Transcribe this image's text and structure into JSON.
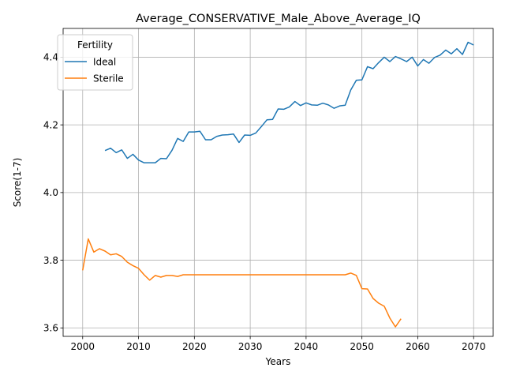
{
  "chart_data": {
    "type": "line",
    "title": "Average_CONSERVATIVE_Male_Above_Average_IQ",
    "xlabel": "Years",
    "ylabel": "Score(1-7)",
    "xlim": [
      1996.5,
      2073.5
    ],
    "ylim": [
      3.575,
      4.485
    ],
    "xticks": [
      2000,
      2010,
      2020,
      2030,
      2040,
      2050,
      2060,
      2070
    ],
    "yticks": [
      3.6,
      3.8,
      4.0,
      4.2,
      4.4
    ],
    "grid": true,
    "legend": {
      "title": "Fertility",
      "placement": "top-left"
    },
    "series": [
      {
        "name": "Ideal",
        "color": "#1f77b4",
        "x": [
          2004,
          2005,
          2006,
          2007,
          2008,
          2009,
          2010,
          2011,
          2012,
          2013,
          2014,
          2015,
          2016,
          2017,
          2018,
          2019,
          2020,
          2021,
          2022,
          2023,
          2024,
          2025,
          2026,
          2027,
          2028,
          2029,
          2030,
          2031,
          2032,
          2033,
          2034,
          2035,
          2036,
          2037,
          2038,
          2039,
          2040,
          2041,
          2042,
          2043,
          2044,
          2045,
          2046,
          2047,
          2048,
          2049,
          2050,
          2051,
          2052,
          2053,
          2054,
          2055,
          2056,
          2057,
          2058,
          2059,
          2060,
          2061,
          2062,
          2063,
          2064,
          2065,
          2066,
          2067,
          2068,
          2069,
          2070
        ],
        "y": [
          4.124,
          4.131,
          4.118,
          4.126,
          4.101,
          4.113,
          4.096,
          4.088,
          4.088,
          4.088,
          4.101,
          4.1,
          4.125,
          4.16,
          4.151,
          4.179,
          4.179,
          4.181,
          4.156,
          4.156,
          4.166,
          4.17,
          4.171,
          4.173,
          4.148,
          4.17,
          4.169,
          4.176,
          4.195,
          4.215,
          4.216,
          4.247,
          4.246,
          4.253,
          4.269,
          4.257,
          4.265,
          4.259,
          4.258,
          4.264,
          4.259,
          4.249,
          4.256,
          4.258,
          4.303,
          4.332,
          4.333,
          4.372,
          4.366,
          4.384,
          4.4,
          4.387,
          4.402,
          4.395,
          4.387,
          4.4,
          4.374,
          4.393,
          4.382,
          4.399,
          4.406,
          4.421,
          4.41,
          4.425,
          4.408,
          4.444,
          4.436
        ]
      },
      {
        "name": "Sterile",
        "color": "#ff7f0e",
        "x": [
          2000,
          2001,
          2002,
          2003,
          2004,
          2005,
          2006,
          2007,
          2008,
          2009,
          2010,
          2011,
          2012,
          2013,
          2014,
          2015,
          2016,
          2017,
          2018,
          2019,
          2020,
          2021,
          2022,
          2023,
          2024,
          2025,
          2026,
          2027,
          2028,
          2029,
          2030,
          2031,
          2032,
          2033,
          2034,
          2035,
          2036,
          2037,
          2038,
          2039,
          2040,
          2041,
          2042,
          2043,
          2044,
          2045,
          2046,
          2047,
          2048,
          2049,
          2050,
          2051,
          2052,
          2053,
          2054,
          2055,
          2056,
          2057
        ],
        "y": [
          3.77,
          3.863,
          3.824,
          3.834,
          3.827,
          3.816,
          3.819,
          3.811,
          3.794,
          3.784,
          3.776,
          3.757,
          3.741,
          3.755,
          3.75,
          3.755,
          3.755,
          3.752,
          3.757,
          3.757,
          3.757,
          3.757,
          3.757,
          3.757,
          3.757,
          3.757,
          3.757,
          3.757,
          3.757,
          3.757,
          3.757,
          3.757,
          3.757,
          3.757,
          3.757,
          3.757,
          3.757,
          3.757,
          3.757,
          3.757,
          3.757,
          3.757,
          3.757,
          3.757,
          3.757,
          3.757,
          3.757,
          3.757,
          3.762,
          3.755,
          3.716,
          3.715,
          3.687,
          3.673,
          3.664,
          3.629,
          3.603,
          3.627
        ]
      }
    ]
  }
}
